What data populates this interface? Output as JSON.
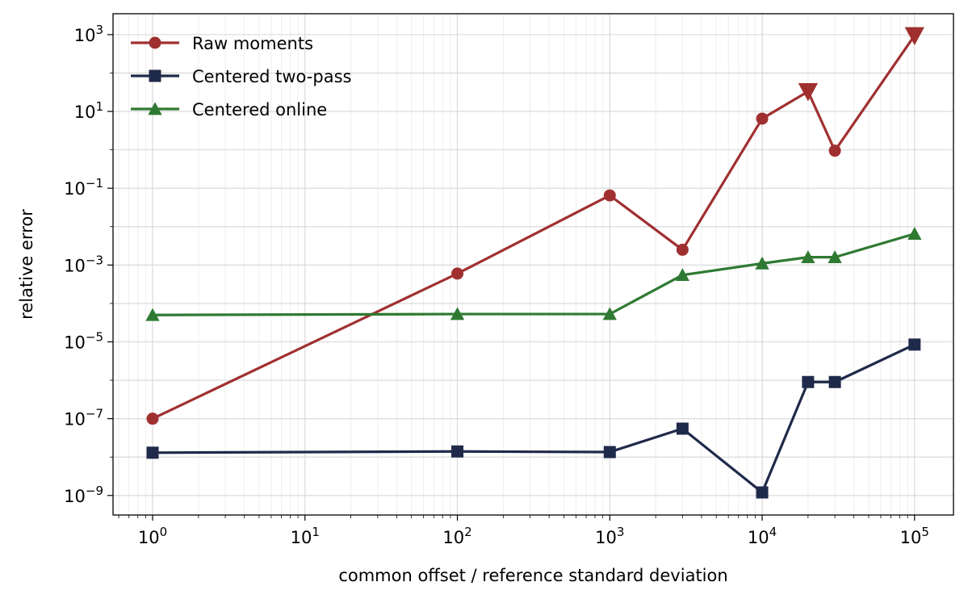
{
  "chart_data": {
    "type": "line",
    "xlabel": "common offset / reference standard deviation",
    "ylabel": "relative error",
    "x_scale": "log",
    "y_scale": "log",
    "xlim": [
      0.55,
      180000
    ],
    "ylim": [
      3.1e-10,
      3500
    ],
    "x_ticks": [
      {
        "base": "10",
        "exp": "0"
      },
      {
        "base": "10",
        "exp": "1"
      },
      {
        "base": "10",
        "exp": "2"
      },
      {
        "base": "10",
        "exp": "3"
      },
      {
        "base": "10",
        "exp": "4"
      },
      {
        "base": "10",
        "exp": "5"
      }
    ],
    "y_ticks": [
      {
        "base": "10",
        "exp": "3"
      },
      {
        "base": "10",
        "exp": "1"
      },
      {
        "base": "10",
        "exp": "−1"
      },
      {
        "base": "10",
        "exp": "−3"
      },
      {
        "base": "10",
        "exp": "−5"
      },
      {
        "base": "10",
        "exp": "−7"
      },
      {
        "base": "10",
        "exp": "−9"
      }
    ],
    "grid": true,
    "legend_position": "top-left",
    "series": [
      {
        "name": "Raw moments",
        "color": "#a03030",
        "marker": "circle",
        "x": [
          1,
          100,
          1000,
          3000,
          10000,
          20000,
          30000,
          100000
        ],
        "y": [
          1e-07,
          0.0006,
          0.065,
          0.0025,
          6.5,
          33,
          0.95,
          950
        ],
        "clipped_points_x": [
          20000,
          100000
        ],
        "clipped_marker": "triangle-down"
      },
      {
        "name": "Centered two-pass",
        "color": "#1f2a4a",
        "marker": "square",
        "x": [
          1,
          100,
          1000,
          3000,
          10000,
          20000,
          30000,
          100000
        ],
        "y": [
          1.3e-08,
          1.4e-08,
          1.35e-08,
          5.5e-08,
          1.2e-09,
          9e-07,
          9e-07,
          8.5e-06
        ]
      },
      {
        "name": "Centered online",
        "color": "#2f7a32",
        "marker": "triangle-up",
        "x": [
          1,
          100,
          1000,
          3000,
          10000,
          20000,
          30000,
          100000
        ],
        "y": [
          5e-05,
          5.3e-05,
          5.3e-05,
          0.00055,
          0.0011,
          0.0016,
          0.0016,
          0.0065
        ]
      }
    ]
  }
}
